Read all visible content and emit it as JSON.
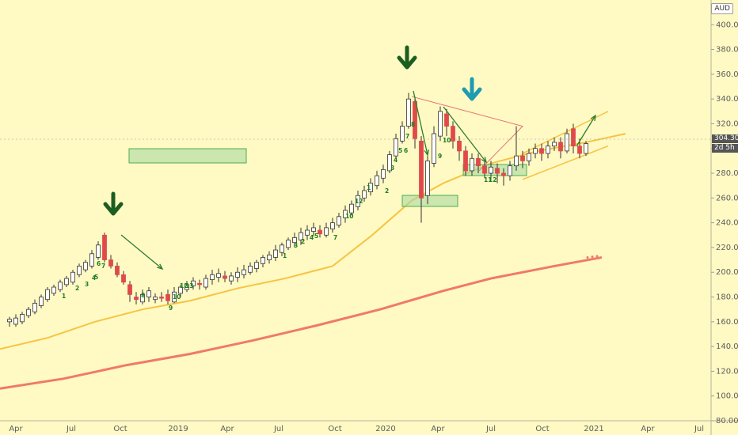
{
  "chart": {
    "currency": "AUD",
    "last_price_label": "304.30",
    "countdown_label": "2d 5h"
  },
  "colors": {
    "background": "#fff9c4",
    "up": "#ffffff",
    "down": "#e0494a",
    "ma_fast": "#f5c542",
    "ma_slow": "#f07a66",
    "green_box": "#a8d8a0",
    "arrow_dark": "#1b5e20",
    "arrow_teal": "#1e9bb0",
    "count_red": "#c62828",
    "count_green": "#1e7d22"
  },
  "chart_data": {
    "type": "candlestick",
    "y_axis": {
      "min": 80,
      "max": 420,
      "ticks": [
        80,
        100,
        120,
        140,
        160,
        180,
        200,
        220,
        240,
        260,
        280,
        300,
        320,
        340,
        360,
        380,
        400
      ],
      "tick_labels": [
        "80.00",
        "100.00",
        "120.00",
        "140.00",
        "160.00",
        "180.00",
        "200.00",
        "220.00",
        "240.00",
        "260.00",
        "280.00",
        "300.00",
        "320.00",
        "340.00",
        "360.00",
        "380.00",
        "400.00"
      ]
    },
    "x_axis": {
      "labels": [
        "Apr",
        "Jul",
        "Oct",
        "2019",
        "Apr",
        "Jul",
        "Oct",
        "2020",
        "Apr",
        "Jul",
        "Oct",
        "2021",
        "Apr",
        "Jul"
      ]
    },
    "series": [
      {
        "name": "MA fast",
        "points": [
          [
            0,
            138
          ],
          [
            60,
            147
          ],
          [
            120,
            160
          ],
          [
            180,
            170
          ],
          [
            240,
            177
          ],
          [
            300,
            187
          ],
          [
            360,
            195
          ],
          [
            420,
            205
          ],
          [
            470,
            230
          ],
          [
            520,
            258
          ],
          [
            560,
            272
          ],
          [
            620,
            288
          ],
          [
            680,
            298
          ],
          [
            740,
            305
          ],
          [
            790,
            312
          ]
        ]
      },
      {
        "name": "MA slow",
        "points": [
          [
            0,
            106
          ],
          [
            80,
            114
          ],
          [
            160,
            125
          ],
          [
            240,
            134
          ],
          [
            320,
            145
          ],
          [
            400,
            157
          ],
          [
            480,
            170
          ],
          [
            560,
            185
          ],
          [
            620,
            195
          ],
          [
            700,
            205
          ],
          [
            760,
            212
          ]
        ]
      }
    ],
    "candles": [
      [
        12,
        160,
        162,
        156,
        164
      ],
      [
        20,
        158,
        163,
        156,
        166
      ],
      [
        28,
        160,
        166,
        158,
        168
      ],
      [
        36,
        165,
        170,
        163,
        172
      ],
      [
        44,
        168,
        175,
        166,
        178
      ],
      [
        52,
        173,
        180,
        171,
        182
      ],
      [
        60,
        178,
        186,
        176,
        188
      ],
      [
        68,
        183,
        188,
        181,
        190
      ],
      [
        76,
        186,
        192,
        184,
        194
      ],
      [
        84,
        190,
        195,
        188,
        197
      ],
      [
        92,
        192,
        200,
        190,
        202
      ],
      [
        100,
        198,
        205,
        196,
        207
      ],
      [
        108,
        202,
        208,
        200,
        210
      ],
      [
        116,
        205,
        215,
        203,
        218
      ],
      [
        124,
        212,
        222,
        210,
        225
      ],
      [
        132,
        230,
        210,
        208,
        232
      ],
      [
        140,
        210,
        205,
        203,
        214
      ],
      [
        148,
        205,
        198,
        196,
        208
      ],
      [
        156,
        198,
        192,
        190,
        201
      ],
      [
        164,
        190,
        182,
        176,
        193
      ],
      [
        172,
        180,
        178,
        174,
        184
      ],
      [
        180,
        176,
        182,
        174,
        186
      ],
      [
        188,
        180,
        185,
        176,
        188
      ],
      [
        196,
        178,
        180,
        175,
        183
      ],
      [
        204,
        180,
        179,
        176,
        184
      ],
      [
        212,
        182,
        177,
        174,
        186
      ],
      [
        220,
        176,
        184,
        175,
        188
      ],
      [
        228,
        183,
        188,
        180,
        190
      ],
      [
        236,
        186,
        190,
        184,
        193
      ],
      [
        244,
        189,
        193,
        186,
        196
      ],
      [
        252,
        191,
        190,
        186,
        194
      ],
      [
        260,
        188,
        195,
        186,
        198
      ],
      [
        268,
        194,
        198,
        190,
        202
      ],
      [
        276,
        196,
        199,
        192,
        203
      ],
      [
        284,
        197,
        195,
        192,
        201
      ],
      [
        292,
        193,
        197,
        190,
        200
      ],
      [
        300,
        196,
        200,
        192,
        204
      ],
      [
        308,
        198,
        202,
        195,
        206
      ],
      [
        316,
        200,
        205,
        198,
        208
      ],
      [
        324,
        203,
        208,
        200,
        210
      ],
      [
        332,
        207,
        212,
        204,
        214
      ],
      [
        340,
        210,
        214,
        207,
        217
      ],
      [
        348,
        212,
        218,
        209,
        222
      ],
      [
        356,
        216,
        222,
        213,
        224
      ],
      [
        364,
        220,
        226,
        218,
        228
      ],
      [
        372,
        224,
        228,
        220,
        232
      ],
      [
        380,
        226,
        232,
        222,
        236
      ],
      [
        388,
        230,
        234,
        226,
        238
      ],
      [
        396,
        233,
        236,
        229,
        240
      ],
      [
        404,
        234,
        231,
        228,
        238
      ],
      [
        412,
        230,
        236,
        228,
        240
      ],
      [
        420,
        235,
        240,
        232,
        244
      ],
      [
        428,
        238,
        245,
        236,
        248
      ],
      [
        436,
        244,
        250,
        240,
        254
      ],
      [
        444,
        248,
        255,
        246,
        258
      ],
      [
        452,
        253,
        262,
        250,
        266
      ],
      [
        460,
        260,
        266,
        257,
        270
      ],
      [
        468,
        265,
        272,
        262,
        276
      ],
      [
        476,
        270,
        278,
        267,
        282
      ],
      [
        484,
        276,
        283,
        272,
        287
      ],
      [
        492,
        282,
        295,
        280,
        298
      ],
      [
        500,
        294,
        308,
        292,
        312
      ],
      [
        508,
        306,
        318,
        304,
        322
      ],
      [
        516,
        318,
        340,
        316,
        345
      ],
      [
        524,
        338,
        308,
        300,
        342
      ],
      [
        532,
        306,
        260,
        240,
        310
      ],
      [
        540,
        262,
        290,
        255,
        294
      ],
      [
        548,
        288,
        312,
        285,
        318
      ],
      [
        556,
        310,
        330,
        306,
        334
      ],
      [
        564,
        328,
        318,
        310,
        332
      ],
      [
        572,
        318,
        306,
        300,
        322
      ],
      [
        580,
        306,
        298,
        290,
        310
      ],
      [
        588,
        298,
        282,
        278,
        302
      ],
      [
        596,
        282,
        292,
        278,
        296
      ],
      [
        604,
        292,
        286,
        280,
        296
      ],
      [
        612,
        286,
        280,
        276,
        290
      ],
      [
        620,
        280,
        285,
        276,
        290
      ],
      [
        628,
        284,
        280,
        272,
        288
      ],
      [
        636,
        280,
        278,
        270,
        284
      ],
      [
        644,
        278,
        286,
        274,
        290
      ],
      [
        652,
        286,
        294,
        282,
        318
      ],
      [
        660,
        294,
        290,
        284,
        298
      ],
      [
        668,
        290,
        296,
        286,
        300
      ],
      [
        676,
        296,
        300,
        292,
        304
      ],
      [
        684,
        300,
        296,
        290,
        304
      ],
      [
        692,
        296,
        302,
        292,
        306
      ],
      [
        700,
        302,
        305,
        298,
        309
      ],
      [
        708,
        305,
        298,
        292,
        309
      ],
      [
        716,
        298,
        312,
        296,
        316
      ],
      [
        724,
        316,
        302,
        296,
        320
      ],
      [
        732,
        302,
        296,
        292,
        308
      ],
      [
        740,
        296,
        304,
        294,
        306
      ]
    ]
  }
}
